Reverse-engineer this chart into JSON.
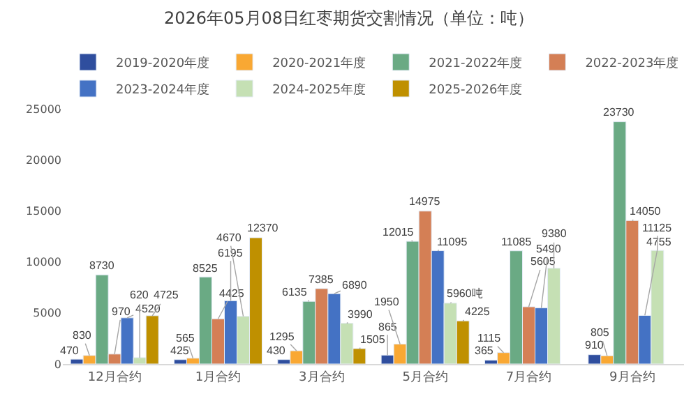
{
  "chart_data": {
    "type": "bar",
    "title": "2026年05月08日红枣期货交割情况（单位：吨）",
    "categories": [
      "12月合约",
      "1月合约",
      "3月合约",
      "5月合约",
      "7月合约",
      "9月合约"
    ],
    "series": [
      {
        "name": "2019-2020年度",
        "color": "#2f4e9e",
        "values": [
          470,
          425,
          430,
          865,
          365,
          910
        ],
        "value_labels": [
          "470",
          "425",
          "430",
          "865",
          "365",
          "910"
        ]
      },
      {
        "name": "2020-2021年度",
        "color": "#f9a833",
        "values": [
          830,
          565,
          1295,
          1950,
          1115,
          805
        ],
        "value_labels": [
          "830",
          "565",
          "1295",
          "1950",
          "1115",
          "805"
        ]
      },
      {
        "name": "2021-2022年度",
        "color": "#6aaa84",
        "values": [
          8730,
          8525,
          6135,
          12015,
          11085,
          23730
        ],
        "value_labels": [
          "8730",
          "8525",
          "6135",
          "12015",
          "11085",
          "23730"
        ]
      },
      {
        "name": "2022-2023年度",
        "color": "#d47f55",
        "values": [
          970,
          4425,
          7385,
          14975,
          5605,
          14050
        ],
        "value_labels": [
          "970",
          "4425",
          "7385",
          "14975",
          "5605",
          "14050"
        ]
      },
      {
        "name": "2023-2024年度",
        "color": "#4472c4",
        "values": [
          4520,
          6195,
          6890,
          11095,
          5490,
          4755
        ],
        "value_labels": [
          "4520",
          "6195",
          "6890",
          "11095",
          "5490",
          "4755"
        ]
      },
      {
        "name": "2024-2025年度",
        "color": "#c5e0b4",
        "values": [
          620,
          4670,
          3990,
          5960,
          9380,
          11125
        ],
        "value_labels": [
          "620",
          "4670",
          "3990",
          "5960吨",
          "9380",
          "11125"
        ]
      },
      {
        "name": "2025-2026年度",
        "color": "#bf9000",
        "values": [
          4725,
          12370,
          1505,
          4225,
          null,
          null
        ],
        "value_labels": [
          "4725",
          "12370",
          "1505",
          "4225",
          null,
          null
        ]
      }
    ],
    "ylim": [
      0,
      25000
    ],
    "yticks": [
      0,
      5000,
      10000,
      15000,
      20000,
      25000
    ],
    "grid": false,
    "legend": "top"
  }
}
